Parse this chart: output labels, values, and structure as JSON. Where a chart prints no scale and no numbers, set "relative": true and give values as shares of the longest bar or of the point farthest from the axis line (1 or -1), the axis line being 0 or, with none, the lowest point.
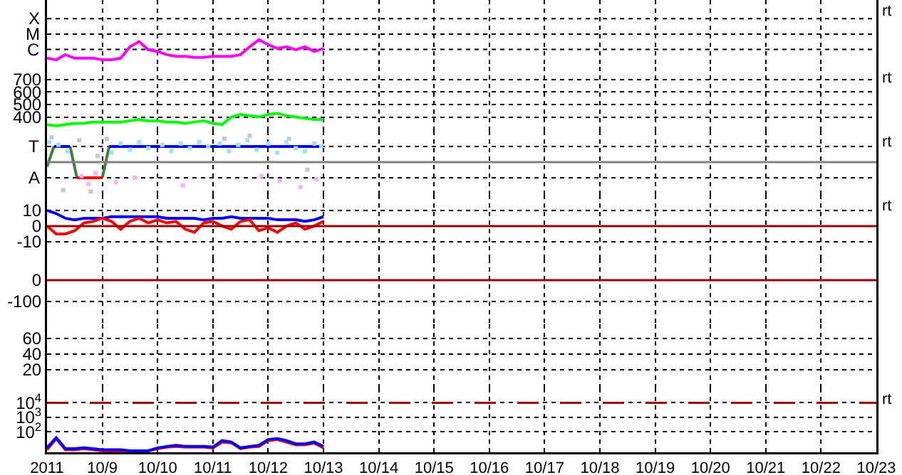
{
  "chart_data": [
    {
      "type": "line",
      "legend": false,
      "tick_labels": false,
      "relative": true,
      "grid": true,
      "annotations": [
        "X",
        "M",
        "C",
        "rt"
      ],
      "xlim": [
        "2011-10-08",
        "2011-10-23"
      ],
      "xticks": [
        {
          "value": "2011-10-08",
          "label": null
        },
        {
          "value": "2011-10-09",
          "label": null
        },
        {
          "value": "2011-10-10",
          "label": null
        },
        {
          "value": "2011-10-11",
          "label": null
        },
        {
          "value": "2011-10-12",
          "label": null
        },
        {
          "value": "2011-10-13",
          "label": null
        },
        {
          "value": "2011-10-14",
          "label": null
        },
        {
          "value": "2011-10-15",
          "label": null
        },
        {
          "value": "2011-10-16",
          "label": null
        },
        {
          "value": "2011-10-17",
          "label": null
        },
        {
          "value": "2011-10-18",
          "label": null
        },
        {
          "value": "2011-10-19",
          "label": null
        },
        {
          "value": "2011-10-20",
          "label": null
        },
        {
          "value": "2011-10-21",
          "label": null
        },
        {
          "value": "2011-10-22",
          "label": null
        },
        {
          "value": "2011-10-23",
          "label": null
        }
      ],
      "x": [
        "2011-10-08T00:00",
        "2011-10-08T04:00",
        "2011-10-08T08:00",
        "2011-10-08T12:00",
        "2011-10-08T16:00",
        "2011-10-08T20:00",
        "2011-10-09T00:00",
        "2011-10-09T04:00",
        "2011-10-09T08:00",
        "2011-10-09T12:00",
        "2011-10-09T16:00",
        "2011-10-09T20:00",
        "2011-10-10T00:00",
        "2011-10-10T04:00",
        "2011-10-10T08:00",
        "2011-10-10T12:00",
        "2011-10-10T16:00",
        "2011-10-10T20:00",
        "2011-10-11T00:00",
        "2011-10-11T04:00",
        "2011-10-11T08:00",
        "2011-10-11T12:00",
        "2011-10-11T16:00",
        "2011-10-11T20:00",
        "2011-10-12T00:00",
        "2011-10-12T04:00",
        "2011-10-12T08:00",
        "2011-10-12T12:00",
        "2011-10-12T16:00",
        "2011-10-12T20:00",
        "2011-10-13T00:00"
      ],
      "series": [
        {
          "color": "#ff00ff",
          "values": [
            0.32,
            0.26,
            0.45,
            0.32,
            0.32,
            0.32,
            0.26,
            0.26,
            0.32,
            0.74,
            0.93,
            0.63,
            0.57,
            0.45,
            0.39,
            0.39,
            0.35,
            0.35,
            0.39,
            0.39,
            0.39,
            0.45,
            0.74,
            1,
            0.82,
            0.68,
            0.74,
            0.63,
            0.74,
            0.57,
            0.68
          ]
        }
      ]
    },
    {
      "type": "line",
      "legend": false,
      "tick_labels": "y",
      "grid": true,
      "annotations": [
        "rt"
      ],
      "xlim": [
        "2011-10-08",
        "2011-10-23"
      ],
      "xticks": [
        {
          "value": "2011-10-08",
          "label": null
        },
        {
          "value": "2011-10-09",
          "label": null
        },
        {
          "value": "2011-10-10",
          "label": null
        },
        {
          "value": "2011-10-11",
          "label": null
        },
        {
          "value": "2011-10-12",
          "label": null
        },
        {
          "value": "2011-10-13",
          "label": null
        },
        {
          "value": "2011-10-14",
          "label": null
        },
        {
          "value": "2011-10-15",
          "label": null
        },
        {
          "value": "2011-10-16",
          "label": null
        },
        {
          "value": "2011-10-17",
          "label": null
        },
        {
          "value": "2011-10-18",
          "label": null
        },
        {
          "value": "2011-10-19",
          "label": null
        },
        {
          "value": "2011-10-20",
          "label": null
        },
        {
          "value": "2011-10-21",
          "label": null
        },
        {
          "value": "2011-10-22",
          "label": null
        },
        {
          "value": "2011-10-23",
          "label": null
        }
      ],
      "ylim": [
        290,
        800
      ],
      "yticks": [
        400,
        500,
        600,
        700
      ],
      "x": [
        "2011-10-08T00:00",
        "2011-10-08T04:00",
        "2011-10-08T08:00",
        "2011-10-08T12:00",
        "2011-10-08T16:00",
        "2011-10-08T20:00",
        "2011-10-09T00:00",
        "2011-10-09T04:00",
        "2011-10-09T08:00",
        "2011-10-09T12:00",
        "2011-10-09T16:00",
        "2011-10-09T20:00",
        "2011-10-10T00:00",
        "2011-10-10T04:00",
        "2011-10-10T08:00",
        "2011-10-10T12:00",
        "2011-10-10T16:00",
        "2011-10-10T20:00",
        "2011-10-11T00:00",
        "2011-10-11T04:00",
        "2011-10-11T08:00",
        "2011-10-11T12:00",
        "2011-10-11T16:00",
        "2011-10-11T20:00",
        "2011-10-12T00:00",
        "2011-10-12T04:00",
        "2011-10-12T08:00",
        "2011-10-12T12:00",
        "2011-10-12T16:00",
        "2011-10-12T20:00",
        "2011-10-13T00:00"
      ],
      "series": [
        {
          "color": "#00ff00",
          "values": [
            340,
            330,
            340,
            350,
            350,
            360,
            360,
            360,
            360,
            370,
            380,
            370,
            370,
            360,
            360,
            350,
            360,
            370,
            350,
            340,
            400,
            420,
            410,
            400,
            420,
            430,
            410,
            400,
            390,
            380,
            380
          ]
        }
      ]
    },
    {
      "type": "line",
      "legend": false,
      "tick_labels": false,
      "relative": true,
      "grid": true,
      "annotations": [
        "T",
        "A",
        "rt"
      ],
      "xlim": [
        "2011-10-08",
        "2011-10-23"
      ],
      "xticks": [
        {
          "value": "2011-10-08",
          "label": null
        },
        {
          "value": "2011-10-09",
          "label": null
        },
        {
          "value": "2011-10-10",
          "label": null
        },
        {
          "value": "2011-10-11",
          "label": null
        },
        {
          "value": "2011-10-12",
          "label": null
        },
        {
          "value": "2011-10-13",
          "label": null
        },
        {
          "value": "2011-10-14",
          "label": null
        },
        {
          "value": "2011-10-15",
          "label": null
        },
        {
          "value": "2011-10-16",
          "label": null
        },
        {
          "value": "2011-10-17",
          "label": null
        },
        {
          "value": "2011-10-18",
          "label": null
        },
        {
          "value": "2011-10-19",
          "label": null
        },
        {
          "value": "2011-10-20",
          "label": null
        },
        {
          "value": "2011-10-21",
          "label": null
        },
        {
          "value": "2011-10-22",
          "label": null
        },
        {
          "value": "2011-10-23",
          "label": null
        }
      ],
      "ref_lines": [
        {
          "axis": "y",
          "value": 0,
          "color": "#808080"
        }
      ],
      "series": [
        {
          "type": "line",
          "color": "#408040",
          "x": [
            "2011-10-08T00:00",
            "2011-10-08T03:00",
            "2011-10-08T06:00",
            "2011-10-08T10:00",
            "2011-10-08T13:00",
            "2011-10-08T18:00",
            "2011-10-09T00:00",
            "2011-10-09T03:00"
          ],
          "values": [
            -0.16,
            0.53,
            null,
            0.53,
            -0.53,
            null,
            -0.53,
            0.53
          ]
        },
        {
          "type": "line",
          "color": "#0000ff",
          "x": [
            "2011-10-08T03:00",
            "2011-10-08T10:00",
            "2011-10-08T20:00",
            "2011-10-09T03:00",
            "2011-10-13T00:00"
          ],
          "values": [
            0.53,
            0.53,
            null,
            0.53,
            0.53
          ]
        },
        {
          "type": "line",
          "color": "#ff0000",
          "x": [
            "2011-10-08T13:00",
            "2011-10-09T00:00"
          ],
          "values": [
            -0.53,
            -0.53
          ]
        },
        {
          "type": "scatter",
          "marker": "square",
          "color": "#c8c8c8",
          "x": [
            "2011-10-08T02:00",
            "2011-10-08T07:00",
            "2011-10-08T14:00",
            "2011-10-08T19:00",
            "2011-10-08T22:00",
            "2011-10-09T02:00",
            "2011-10-11T05:00",
            "2011-10-11T16:00",
            "2011-10-12T09:00",
            "2011-10-12T17:00"
          ],
          "values": [
            0.84,
            -0.95,
            0.74,
            -1,
            0.21,
            0.79,
            0.79,
            0.89,
            0.79,
            -0.26
          ]
        },
        {
          "type": "scatter",
          "marker": "square",
          "color": "#ffb0ff",
          "x": [
            "2011-10-08T15:00",
            "2011-10-08T18:00",
            "2011-10-08T21:00",
            "2011-10-09T06:00",
            "2011-10-09T14:00",
            "2011-10-10T11:00",
            "2011-10-11T21:00",
            "2011-10-12T05:00",
            "2011-10-12T14:00",
            "2011-10-12T21:00"
          ],
          "values": [
            -0.47,
            -0.74,
            -0.37,
            -0.68,
            -0.53,
            -0.79,
            -0.47,
            -0.63,
            -0.84,
            -0.58
          ]
        },
        {
          "type": "scatter",
          "marker": "square",
          "color": "#a0e0ff",
          "x": [
            "2011-10-08T01:00",
            "2011-10-08T05:00",
            "2011-10-08T09:00",
            "2011-10-09T04:00",
            "2011-10-09T08:00",
            "2011-10-09T12:00",
            "2011-10-09T16:00",
            "2011-10-09T20:00",
            "2011-10-10T02:00",
            "2011-10-10T06:00",
            "2011-10-10T10:00",
            "2011-10-10T14:00",
            "2011-10-10T18:00",
            "2011-10-10T22:00",
            "2011-10-11T03:00",
            "2011-10-11T07:00",
            "2011-10-11T11:00",
            "2011-10-11T15:00",
            "2011-10-11T19:00",
            "2011-10-12T00:00",
            "2011-10-12T04:00",
            "2011-10-12T08:00",
            "2011-10-12T12:00",
            "2011-10-12T16:00",
            "2011-10-12T20:00",
            "2011-10-12T23:00"
          ],
          "values": [
            0.68,
            0.58,
            0.37,
            0.32,
            0.63,
            0.42,
            0.68,
            0.47,
            0.58,
            0.37,
            0.63,
            0.47,
            0.68,
            0.53,
            0.63,
            0.37,
            0.58,
            0.74,
            0.42,
            0.63,
            0.32,
            0.68,
            0.47,
            0.37,
            0.63,
            0.53
          ]
        }
      ]
    },
    {
      "type": "line",
      "legend": false,
      "tick_labels": "y",
      "grid": true,
      "annotations": [
        "rt"
      ],
      "xlim": [
        "2011-10-08",
        "2011-10-23"
      ],
      "xticks": [
        {
          "value": "2011-10-08",
          "label": null
        },
        {
          "value": "2011-10-09",
          "label": null
        },
        {
          "value": "2011-10-10",
          "label": null
        },
        {
          "value": "2011-10-11",
          "label": null
        },
        {
          "value": "2011-10-12",
          "label": null
        },
        {
          "value": "2011-10-13",
          "label": null
        },
        {
          "value": "2011-10-14",
          "label": null
        },
        {
          "value": "2011-10-15",
          "label": null
        },
        {
          "value": "2011-10-16",
          "label": null
        },
        {
          "value": "2011-10-17",
          "label": null
        },
        {
          "value": "2011-10-18",
          "label": null
        },
        {
          "value": "2011-10-19",
          "label": null
        },
        {
          "value": "2011-10-20",
          "label": null
        },
        {
          "value": "2011-10-21",
          "label": null
        },
        {
          "value": "2011-10-22",
          "label": null
        },
        {
          "value": "2011-10-23",
          "label": null
        }
      ],
      "ylim": [
        -21,
        20
      ],
      "yticks": [
        -10,
        0,
        10
      ],
      "ref_lines": [
        {
          "axis": "y",
          "value": 0,
          "color": "#a00000"
        }
      ],
      "x": [
        "2011-10-08T00:00",
        "2011-10-08T04:00",
        "2011-10-08T08:00",
        "2011-10-08T12:00",
        "2011-10-08T16:00",
        "2011-10-08T20:00",
        "2011-10-09T00:00",
        "2011-10-09T04:00",
        "2011-10-09T08:00",
        "2011-10-09T12:00",
        "2011-10-09T16:00",
        "2011-10-09T20:00",
        "2011-10-10T00:00",
        "2011-10-10T04:00",
        "2011-10-10T08:00",
        "2011-10-10T12:00",
        "2011-10-10T16:00",
        "2011-10-10T20:00",
        "2011-10-11T00:00",
        "2011-10-11T04:00",
        "2011-10-11T08:00",
        "2011-10-11T12:00",
        "2011-10-11T16:00",
        "2011-10-11T20:00",
        "2011-10-12T00:00",
        "2011-10-12T04:00",
        "2011-10-12T08:00",
        "2011-10-12T12:00",
        "2011-10-12T16:00",
        "2011-10-12T20:00",
        "2011-10-13T00:00"
      ],
      "series": [
        {
          "color": "#0000ff",
          "values": [
            10,
            8,
            5,
            4,
            5,
            5,
            5,
            6,
            6,
            6,
            6,
            6,
            6,
            5,
            5,
            5,
            5,
            4,
            5,
            5,
            6,
            5,
            5,
            5,
            5,
            4,
            4,
            4,
            3,
            4,
            6
          ]
        },
        {
          "color": "#ff0000",
          "values": [
            0,
            -5,
            -5,
            -3,
            2,
            3,
            5,
            3,
            -2,
            3,
            5,
            2,
            4,
            2,
            3,
            -2,
            -4,
            2,
            3,
            0,
            -2,
            3,
            4,
            -3,
            -1,
            -4,
            0,
            2,
            -2,
            0,
            3
          ]
        }
      ]
    },
    {
      "type": "line",
      "legend": false,
      "tick_labels": "y",
      "grid": true,
      "xlim": [
        "2011-10-08",
        "2011-10-23"
      ],
      "xticks": [
        {
          "value": "2011-10-08",
          "label": null
        },
        {
          "value": "2011-10-09",
          "label": null
        },
        {
          "value": "2011-10-10",
          "label": null
        },
        {
          "value": "2011-10-11",
          "label": null
        },
        {
          "value": "2011-10-12",
          "label": null
        },
        {
          "value": "2011-10-13",
          "label": null
        },
        {
          "value": "2011-10-14",
          "label": null
        },
        {
          "value": "2011-10-15",
          "label": null
        },
        {
          "value": "2011-10-16",
          "label": null
        },
        {
          "value": "2011-10-17",
          "label": null
        },
        {
          "value": "2011-10-18",
          "label": null
        },
        {
          "value": "2011-10-19",
          "label": null
        },
        {
          "value": "2011-10-20",
          "label": null
        },
        {
          "value": "2011-10-21",
          "label": null
        },
        {
          "value": "2011-10-22",
          "label": null
        },
        {
          "value": "2011-10-23",
          "label": null
        }
      ],
      "ylim": [
        -207,
        100
      ],
      "yticks": [
        -100,
        0
      ],
      "ref_lines": [
        {
          "axis": "y",
          "value": 0,
          "color": "#a00000"
        }
      ]
    },
    {
      "type": "line",
      "legend": false,
      "tick_labels": "y",
      "grid": true,
      "xlim": [
        "2011-10-08",
        "2011-10-23"
      ],
      "xticks": [
        {
          "value": "2011-10-08",
          "label": null
        },
        {
          "value": "2011-10-09",
          "label": null
        },
        {
          "value": "2011-10-10",
          "label": null
        },
        {
          "value": "2011-10-11",
          "label": null
        },
        {
          "value": "2011-10-12",
          "label": null
        },
        {
          "value": "2011-10-13",
          "label": null
        },
        {
          "value": "2011-10-14",
          "label": null
        },
        {
          "value": "2011-10-15",
          "label": null
        },
        {
          "value": "2011-10-16",
          "label": null
        },
        {
          "value": "2011-10-17",
          "label": null
        },
        {
          "value": "2011-10-18",
          "label": null
        },
        {
          "value": "2011-10-19",
          "label": null
        },
        {
          "value": "2011-10-20",
          "label": null
        },
        {
          "value": "2011-10-21",
          "label": null
        },
        {
          "value": "2011-10-22",
          "label": null
        },
        {
          "value": "2011-10-23",
          "label": null
        }
      ],
      "ylim": [
        -4,
        78
      ],
      "yticks": [
        20,
        40,
        60
      ]
    },
    {
      "type": "line",
      "legend": false,
      "log": true,
      "grid": true,
      "annotations": [
        "rt"
      ],
      "xlim": [
        "2011-10-08",
        "2011-10-23"
      ],
      "xticks": [
        {
          "value": "2011-10-08",
          "label": "2011"
        },
        {
          "value": "2011-10-09",
          "label": "10/9"
        },
        {
          "value": "2011-10-10",
          "label": "10/10"
        },
        {
          "value": "2011-10-11",
          "label": "10/11"
        },
        {
          "value": "2011-10-12",
          "label": "10/12"
        },
        {
          "value": "2011-10-13",
          "label": "10/13"
        },
        {
          "value": "2011-10-14",
          "label": "10/14"
        },
        {
          "value": "2011-10-15",
          "label": "10/15"
        },
        {
          "value": "2011-10-16",
          "label": "10/16"
        },
        {
          "value": "2011-10-17",
          "label": "10/17"
        },
        {
          "value": "2011-10-18",
          "label": "10/18"
        },
        {
          "value": "2011-10-19",
          "label": "10/19"
        },
        {
          "value": "2011-10-20",
          "label": "10/20"
        },
        {
          "value": "2011-10-21",
          "label": "10/21"
        },
        {
          "value": "2011-10-22",
          "label": "10/22"
        },
        {
          "value": "2011-10-23",
          "label": "10/23"
        }
      ],
      "ylim": [
        4,
        100000
      ],
      "yticks": [
        {
          "value": 100,
          "label": "10$^{2}$"
        },
        {
          "value": 1000,
          "label": "10$^{3}$"
        },
        {
          "value": 10000,
          "label": "10$^{4}$"
        }
      ],
      "ref_lines": [
        {
          "axis": "y",
          "value": 10000,
          "color": "#a00000",
          "line_style": "dashed"
        }
      ],
      "x": [
        "2011-10-08T00:00",
        "2011-10-08T04:00",
        "2011-10-08T08:00",
        "2011-10-08T12:00",
        "2011-10-08T16:00",
        "2011-10-08T20:00",
        "2011-10-09T00:00",
        "2011-10-09T04:00",
        "2011-10-09T08:00",
        "2011-10-09T12:00",
        "2011-10-09T16:00",
        "2011-10-09T20:00",
        "2011-10-10T00:00",
        "2011-10-10T04:00",
        "2011-10-10T08:00",
        "2011-10-10T12:00",
        "2011-10-10T16:00",
        "2011-10-10T20:00",
        "2011-10-11T00:00",
        "2011-10-11T04:00",
        "2011-10-11T08:00",
        "2011-10-11T12:00",
        "2011-10-11T16:00",
        "2011-10-11T20:00",
        "2011-10-12T00:00",
        "2011-10-12T04:00",
        "2011-10-12T08:00",
        "2011-10-12T12:00",
        "2011-10-12T16:00",
        "2011-10-12T20:00",
        "2011-10-13T00:00"
      ],
      "series": [
        {
          "color": "#ff0000",
          "values": [
            6,
            35,
            6,
            6,
            7,
            6,
            5,
            5,
            5,
            5,
            5,
            5,
            7,
            9,
            10,
            9,
            9,
            9,
            8,
            20,
            18,
            7,
            9,
            10,
            25,
            30,
            20,
            13,
            13,
            17,
            8
          ]
        },
        {
          "color": "#0000ff",
          "values": [
            8,
            40,
            7,
            7,
            8,
            7,
            6,
            6,
            6,
            5,
            5,
            5,
            8,
            10,
            12,
            10,
            10,
            10,
            9,
            25,
            20,
            8,
            10,
            12,
            30,
            35,
            25,
            15,
            15,
            20,
            10
          ]
        }
      ]
    }
  ]
}
